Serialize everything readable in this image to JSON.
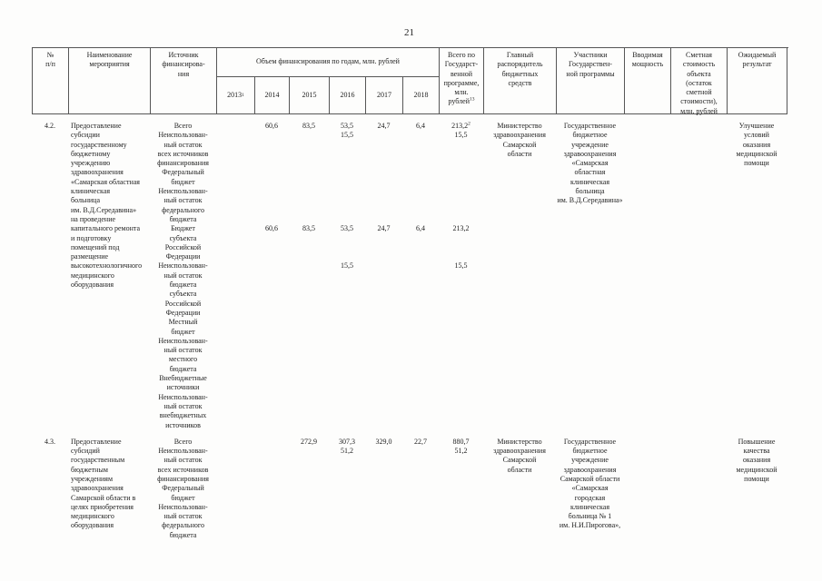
{
  "page": {
    "number": "21"
  },
  "table": {
    "header": {
      "num": "№\nп/п",
      "name": "Наименование\nмероприятия",
      "source": "Источник\nфинансирова-\nния",
      "volume_group": "Объем финансирования по годам, млн. рублей",
      "years": [
        {
          "label": "2013",
          "sup": "1"
        },
        {
          "label": "2014"
        },
        {
          "label": "2015"
        },
        {
          "label": "2016"
        },
        {
          "label": "2017"
        },
        {
          "label": "2018"
        }
      ],
      "total": {
        "label": "Всего по\nГосударст-\nвенной\nпрограмме,\nмлн.\nрублей",
        "sup": "13"
      },
      "grbs": "Главный\nраспорядитель\nбюджетных\nсредств",
      "participants": "Участники\nГосударствен-\nной программы",
      "capacity": "Вводимая\nмощность",
      "estimate": "Сметная\nстоимость\nобъекта\n(остаток\nсметной\nстоимости),\nмлн. рублей",
      "result": "Ожидаемый\nрезультат"
    },
    "rows": [
      {
        "num": "4.2.",
        "name": "Предоставление\nсубсидии\nгосударственному\nбюджетному\nучреждению\nздравоохранения\n«Самарская областная\nклиническая\nбольница\nим. В.Д.Середавина»\nна проведение\nкапитального ремонта\nи подготовку\nпомещений под\nразмещение\nвысокотехнологичного\nмедицинского\nоборудования",
        "items": [
          {
            "label": "Всего",
            "y2014": "60,6",
            "y2015": "83,5",
            "y2016": "53,5",
            "y2017": "24,7",
            "y2018": "6,4",
            "total": "213,2",
            "total_sup": "2"
          },
          {
            "label": "Неиспользован-\nный остаток\nвсех источников\nфинансирования",
            "y2016": "15,5",
            "total": "15,5"
          },
          {
            "label": "Федеральный\nбюджет"
          },
          {
            "label": "Неиспользован-\nный остаток\nфедерального\nбюджета"
          },
          {
            "label": "Бюджет\nсубъекта\nРоссийской\nФедерации",
            "y2014": "60,6",
            "y2015": "83,5",
            "y2016": "53,5",
            "y2017": "24,7",
            "y2018": "6,4",
            "total": "213,2"
          },
          {
            "label": "Неиспользован-\nный остаток\nбюджета\nсубъекта\nРоссийской\nФедерации",
            "y2016": "15,5",
            "total": "15,5"
          },
          {
            "label": "Местный\nбюджет"
          },
          {
            "label": "Неиспользован-\nный остаток\nместного\nбюджета"
          },
          {
            "label": "Внебюджетные\nисточники"
          },
          {
            "label": "Неиспользован-\nный остаток\nвнебюджетных\nисточников"
          }
        ],
        "grbs": "Министерство\nздравоохранения\nСамарской\nобласти",
        "participants": "Государственное\nбюджетное\nучреждение\nздравоохранения\n«Самарская\nобластная\nклиническая\nбольница\nим. В.Д.Середавина»",
        "result": "Улучшение\nусловий\nоказания\nмедицинской\nпомощи"
      },
      {
        "num": "4.3.",
        "name": "Предоставление\nсубсидий\nгосударственным\nбюджетным\nучреждениям\nздравоохранения\nСамарской области в\nцелях приобретения\nмедицинского\nоборудования",
        "items": [
          {
            "label": "Всего",
            "y2015": "272,9",
            "y2016": "307,3",
            "y2017": "329,0",
            "y2018": "22,7",
            "total": "880,7"
          },
          {
            "label": "Неиспользован-\nный остаток\nвсех источников\nфинансирования",
            "y2016": "51,2",
            "total": "51,2"
          },
          {
            "label": "Федеральный\nбюджет"
          },
          {
            "label": "Неиспользован-\nный остаток\nфедерального\nбюджета"
          }
        ],
        "grbs": "Министерство\nздравоохранения\nСамарской\nобласти",
        "participants": "Государственное\nбюджетное\nучреждение\nздравоохранения\nСамарской области\n«Самарская\nгородская\nклиническая\nбольница № 1\nим. Н.И.Пирогова»,",
        "result": "Повышение\nкачества\nоказания\nмедицинской\nпомощи"
      }
    ]
  }
}
